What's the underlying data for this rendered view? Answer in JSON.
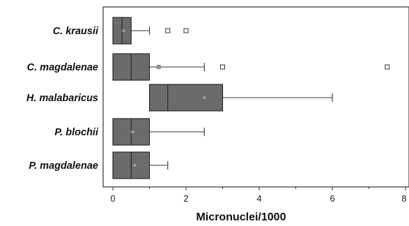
{
  "chart_data": {
    "type": "boxplot",
    "orientation": "horizontal",
    "xlabel": "Micronuclei/1000",
    "xlim": [
      0,
      8
    ],
    "xticks": [
      "0",
      "2",
      "4",
      "6",
      "8"
    ],
    "grid": false,
    "box_color": "#6b6b6b",
    "categories": [
      "C. krausii",
      "C. magdalenae",
      "H. malabaricus",
      "P. blochii",
      "P. magdalenae"
    ],
    "boxes": [
      {
        "category": "C. krausii",
        "whisker_low": 0,
        "q1": 0,
        "median": 0.25,
        "q3": 0.5,
        "whisker_high": 1,
        "mean": 0.3,
        "outliers": [
          1.5,
          2
        ]
      },
      {
        "category": "C. magdalenae",
        "whisker_low": 0,
        "q1": 0,
        "median": 0.5,
        "q3": 1,
        "whisker_high": 2.5,
        "mean": 1.25,
        "outliers": [
          3,
          7.5
        ]
      },
      {
        "category": "H. malabaricus",
        "whisker_low": 1,
        "q1": 1,
        "median": 1.5,
        "q3": 3,
        "whisker_high": 6,
        "mean": 2.5,
        "outliers": []
      },
      {
        "category": "P. blochii",
        "whisker_low": 0,
        "q1": 0,
        "median": 0.5,
        "q3": 1,
        "whisker_high": 2.5,
        "mean": 0.55,
        "outliers": []
      },
      {
        "category": "P. magdalenae",
        "whisker_low": 0,
        "q1": 0,
        "median": 0.5,
        "q3": 1,
        "whisker_high": 1.5,
        "mean": 0.6,
        "outliers": []
      }
    ]
  }
}
